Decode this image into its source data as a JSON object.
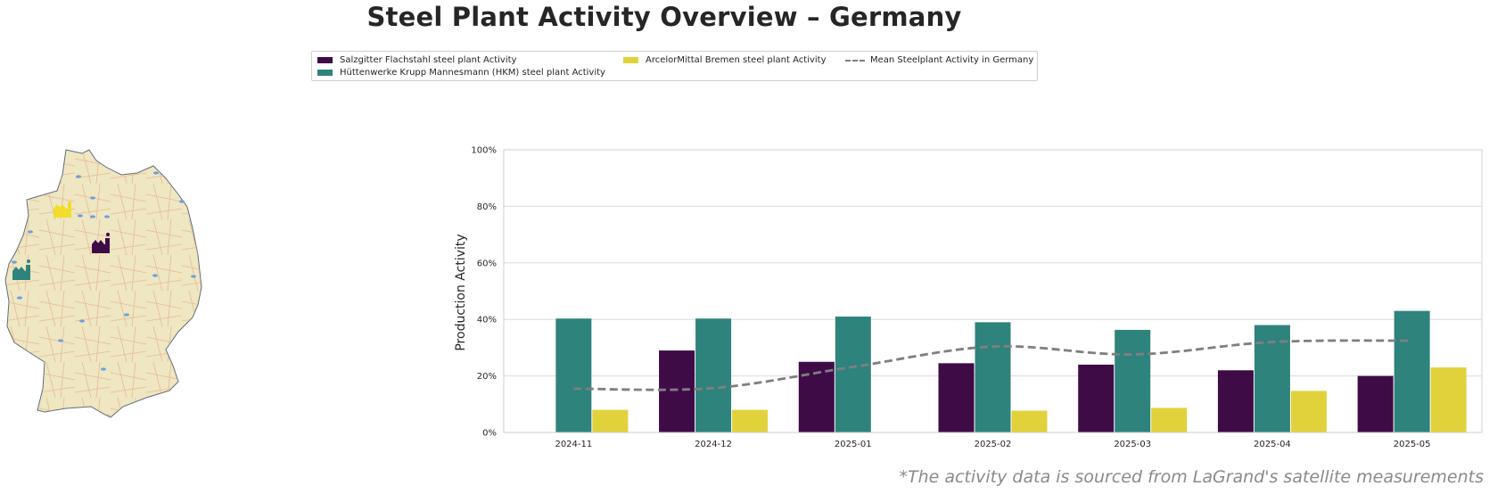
{
  "title": "Steel Plant Activity Overview – Germany",
  "legend": [
    {
      "label": "Salzgitter Flachstahl steel plant Activity",
      "color": "#3f0b47",
      "kind": "bar"
    },
    {
      "label": "Hüttenwerke Krupp Mannesmann (HKM) steel plant Activity",
      "color": "#2e837c",
      "kind": "bar"
    },
    {
      "label": "ArcelorMittal Bremen steel plant Activity",
      "color": "#e1d23c",
      "kind": "bar"
    },
    {
      "label": "Mean Steelplant Activity in Germany",
      "color": "#7f7f7f",
      "kind": "line"
    }
  ],
  "map": {
    "markers": [
      {
        "name": "arcelormittal-bremen-marker",
        "color": "#f1dd2a"
      },
      {
        "name": "salzgitter-marker",
        "color": "#3f0b47"
      },
      {
        "name": "hkm-marker",
        "color": "#2e837c"
      }
    ]
  },
  "chart_data": {
    "type": "bar",
    "categories": [
      "2024-11",
      "2024-12",
      "2025-01",
      "2025-02",
      "2025-03",
      "2025-04",
      "2025-05"
    ],
    "series": [
      {
        "name": "Salzgitter Flachstahl steel plant Activity",
        "color": "#3f0b47",
        "values": [
          null,
          29,
          25,
          24.5,
          24,
          22,
          20
        ]
      },
      {
        "name": "Hüttenwerke Krupp Mannesmann (HKM) steel plant Activity",
        "color": "#2e837c",
        "values": [
          40.3,
          40.3,
          41,
          39,
          36.3,
          38,
          43
        ]
      },
      {
        "name": "ArcelorMittal Bremen steel plant Activity",
        "color": "#e1d23c",
        "values": [
          8,
          8,
          null,
          7.7,
          8.7,
          14.7,
          23
        ]
      }
    ],
    "line": {
      "name": "Mean Steelplant Activity in Germany",
      "color": "#7f7f7f",
      "style": "dashed",
      "values": [
        15.5,
        15.7,
        23.2,
        30.4,
        27.6,
        32,
        32.5
      ]
    },
    "ylabel": "Production Activity",
    "yticks": [
      "0%",
      "20%",
      "40%",
      "60%",
      "80%",
      "100%"
    ],
    "ylim": [
      0,
      100
    ],
    "grid": "horizontal",
    "legend_position": "top-center"
  },
  "footnote": "*The activity data is sourced from LaGrand's satellite measurements"
}
